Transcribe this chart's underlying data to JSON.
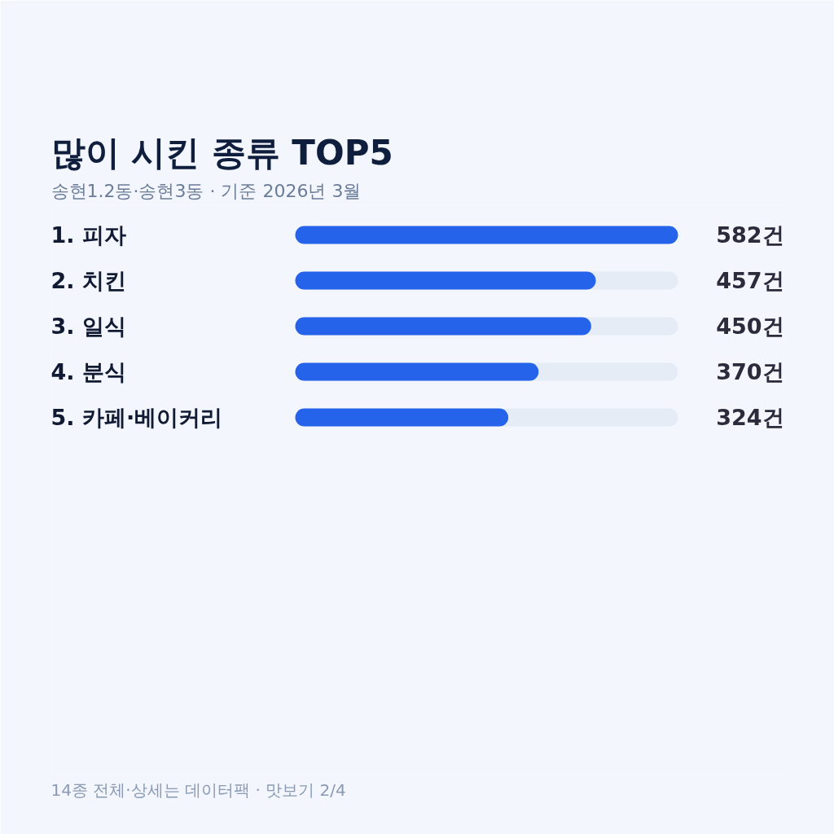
{
  "chart_data": {
    "type": "bar",
    "orientation": "horizontal",
    "title": "많이 시킨 종류 TOP5",
    "subtitle": "송현1.2동·송현3동 · 기준 2026년 3월",
    "categories": [
      "1. 피자",
      "2. 치킨",
      "3. 일식",
      "4. 분식",
      "5. 카페·베이커리"
    ],
    "values": [
      582,
      457,
      450,
      370,
      324
    ],
    "color": "#2563eb",
    "value_labels": [
      "582건",
      "457건",
      "450건",
      "370건",
      "324건"
    ],
    "annotations": [
      "14종 전체·상세는 데이터팩 · 맛보기 2/4"
    ]
  }
}
